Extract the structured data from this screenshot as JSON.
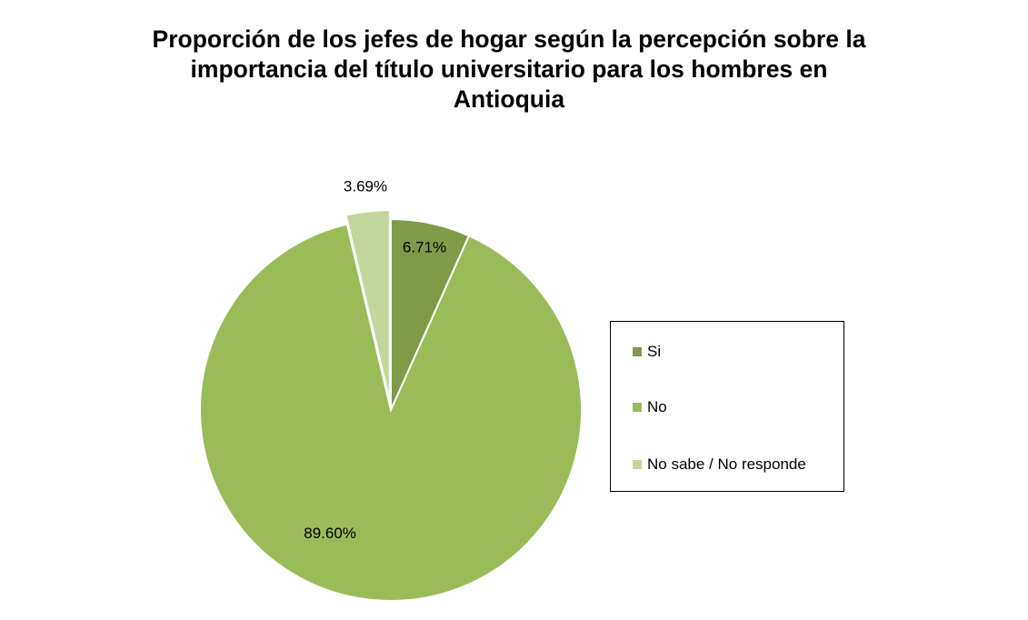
{
  "chart_data": {
    "type": "pie",
    "title_lines": [
      "Proporción de los jefes de hogar según la percepción sobre la",
      "importancia del título universitario para los hombres en",
      "Antioquia"
    ],
    "slices": [
      {
        "label": "Si",
        "value": 6.71,
        "display": "6.71%",
        "color": "#7f9a48",
        "exploded": false
      },
      {
        "label": "No",
        "value": 89.6,
        "display": "89.60%",
        "color": "#9bbb59",
        "exploded": false
      },
      {
        "label": "No sabe / No responde",
        "value": 3.69,
        "display": "3.69%",
        "color": "#c3d69b",
        "exploded": true
      }
    ],
    "start_angle": "12 o'clock",
    "direction": "clockwise",
    "legend_position": "right"
  }
}
